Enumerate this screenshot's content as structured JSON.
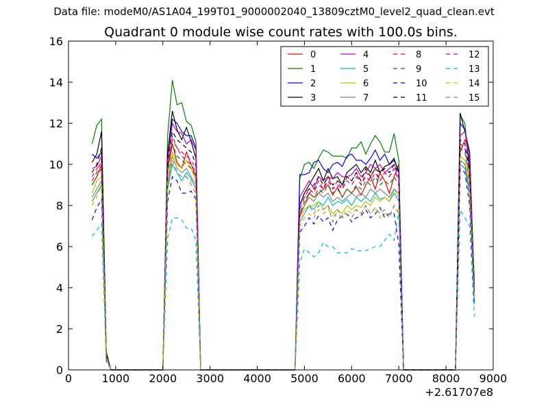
{
  "figure": {
    "suptitle": "Data file: modeM0/AS1A04_199T01_9000002040_13809cztM0_level2_quad_clean.evt",
    "title": "Quadrant 0 module wise count rates with 100.0s bins.",
    "offset_label": "+2.61707e8"
  },
  "chart_data": {
    "type": "line",
    "title": "Quadrant 0 module wise count rates with 100.0s bins.",
    "xlabel": "",
    "ylabel": "",
    "x_offset": "+2.61707e8",
    "xlim": [
      0,
      9000
    ],
    "ylim": [
      0,
      16
    ],
    "xticks": [
      0,
      1000,
      2000,
      3000,
      4000,
      5000,
      6000,
      7000,
      8000,
      9000
    ],
    "yticks": [
      0,
      2,
      4,
      6,
      8,
      10,
      12,
      14,
      16
    ],
    "grid": false,
    "legend_position": "top-right",
    "legend_columns": 4,
    "x": [
      500,
      600,
      700,
      800,
      900,
      1000,
      2000,
      2100,
      2200,
      2300,
      2400,
      2500,
      2600,
      2700,
      2800,
      2900,
      4800,
      4900,
      5000,
      5100,
      5200,
      5300,
      5400,
      5500,
      5600,
      5700,
      5800,
      5900,
      6000,
      6100,
      6200,
      6300,
      6400,
      6500,
      6600,
      6700,
      6800,
      6900,
      7000,
      7100,
      8200,
      8300,
      8400,
      8500,
      8600
    ],
    "series": [
      {
        "name": "0",
        "color": "#ff0000",
        "dash": "solid",
        "values": [
          9.0,
          9.4,
          10.0,
          0.6,
          0.0,
          0.0,
          0.0,
          9.8,
          11.0,
          10.1,
          9.8,
          10.6,
          10.0,
          9.4,
          0.0,
          0.0,
          0.0,
          7.5,
          8.0,
          8.6,
          8.4,
          8.6,
          8.8,
          9.0,
          8.5,
          8.9,
          8.4,
          8.8,
          8.6,
          8.9,
          8.5,
          9.0,
          9.4,
          8.8,
          9.6,
          9.2,
          8.6,
          9.4,
          10.0,
          0.0,
          0.0,
          10.6,
          11.2,
          10.6,
          4.0
        ]
      },
      {
        "name": "1",
        "color": "#008000",
        "dash": "solid",
        "values": [
          11.0,
          11.9,
          12.2,
          0.9,
          0.0,
          0.0,
          0.0,
          11.4,
          14.1,
          12.9,
          13.0,
          12.1,
          11.9,
          11.1,
          0.0,
          0.0,
          0.0,
          9.3,
          10.0,
          10.1,
          9.8,
          10.3,
          10.7,
          10.6,
          10.4,
          10.4,
          10.4,
          10.3,
          10.8,
          10.8,
          11.1,
          10.5,
          11.0,
          11.4,
          11.1,
          10.6,
          10.6,
          11.5,
          10.2,
          0.0,
          0.0,
          12.4,
          12.0,
          9.5,
          4.4
        ]
      },
      {
        "name": "2",
        "color": "#0000ff",
        "dash": "solid",
        "values": [
          10.5,
          10.3,
          10.6,
          0.7,
          0.0,
          0.0,
          0.0,
          10.6,
          12.2,
          12.0,
          11.6,
          11.4,
          11.4,
          10.8,
          0.0,
          0.0,
          0.0,
          9.5,
          9.5,
          9.6,
          10.1,
          10.2,
          9.8,
          9.6,
          10.0,
          10.1,
          9.9,
          10.4,
          10.5,
          10.2,
          10.2,
          10.0,
          10.3,
          10.7,
          10.2,
          10.5,
          10.0,
          10.2,
          9.7,
          0.0,
          0.0,
          12.0,
          11.7,
          9.9,
          4.0
        ]
      },
      {
        "name": "3",
        "color": "#000000",
        "dash": "solid",
        "values": [
          10.1,
          10.5,
          11.6,
          0.8,
          0.0,
          0.0,
          0.0,
          10.5,
          12.6,
          11.7,
          11.2,
          11.8,
          11.1,
          10.3,
          0.0,
          0.0,
          0.0,
          8.0,
          8.6,
          9.0,
          9.4,
          9.8,
          9.2,
          9.8,
          9.3,
          9.4,
          9.0,
          9.6,
          9.8,
          10.0,
          9.6,
          9.9,
          9.6,
          10.2,
          9.6,
          9.9,
          10.0,
          10.3,
          9.6,
          0.0,
          0.0,
          12.5,
          11.6,
          10.6,
          3.8
        ]
      },
      {
        "name": "4",
        "color": "#bf00bf",
        "dash": "solid",
        "values": [
          9.8,
          9.9,
          10.4,
          0.7,
          0.0,
          0.0,
          0.0,
          10.2,
          12.0,
          11.6,
          11.5,
          11.0,
          11.2,
          10.7,
          0.0,
          0.0,
          0.0,
          8.4,
          8.8,
          9.2,
          8.8,
          9.4,
          9.2,
          9.4,
          9.3,
          9.6,
          9.4,
          9.4,
          9.5,
          9.8,
          9.4,
          9.6,
          10.0,
          9.8,
          10.0,
          9.6,
          9.8,
          10.0,
          9.6,
          0.0,
          0.0,
          11.4,
          11.6,
          10.2,
          3.9
        ]
      },
      {
        "name": "5",
        "color": "#00bfbf",
        "dash": "solid",
        "values": [
          8.2,
          8.6,
          9.0,
          0.6,
          0.0,
          0.0,
          0.0,
          8.8,
          10.0,
          9.6,
          9.2,
          9.6,
          9.3,
          8.8,
          0.0,
          0.0,
          0.0,
          7.2,
          7.6,
          8.0,
          7.8,
          8.2,
          8.0,
          8.4,
          8.0,
          8.2,
          8.1,
          8.3,
          8.0,
          8.4,
          8.2,
          8.4,
          8.2,
          8.6,
          8.3,
          8.4,
          8.2,
          8.6,
          8.2,
          0.0,
          0.0,
          10.0,
          9.8,
          8.6,
          3.2
        ]
      },
      {
        "name": "6",
        "color": "#bfbf00",
        "dash": "solid",
        "values": [
          8.6,
          9.2,
          9.4,
          0.6,
          0.0,
          0.0,
          0.0,
          9.4,
          10.6,
          10.0,
          9.8,
          10.2,
          9.8,
          9.2,
          0.0,
          0.0,
          0.0,
          7.4,
          7.8,
          8.0,
          8.0,
          8.2,
          7.8,
          8.0,
          7.6,
          7.8,
          7.6,
          8.0,
          7.8,
          8.0,
          7.9,
          8.2,
          8.0,
          8.4,
          8.2,
          8.4,
          8.2,
          8.8,
          8.4,
          0.0,
          0.0,
          10.4,
          10.2,
          9.0,
          3.6
        ]
      },
      {
        "name": "7",
        "color": "#808080",
        "dash": "solid",
        "values": [
          8.4,
          8.8,
          9.2,
          0.6,
          0.0,
          0.0,
          0.0,
          9.0,
          10.4,
          9.8,
          9.6,
          9.8,
          9.4,
          9.0,
          0.0,
          0.0,
          0.0,
          7.6,
          8.0,
          8.4,
          8.2,
          8.6,
          8.4,
          8.6,
          8.2,
          8.4,
          8.2,
          8.4,
          8.6,
          8.4,
          8.6,
          8.4,
          8.8,
          8.6,
          8.8,
          8.6,
          8.4,
          8.8,
          8.6,
          0.0,
          0.0,
          10.2,
          10.0,
          8.8,
          3.6
        ]
      },
      {
        "name": "8",
        "color": "#ff0000",
        "dash": "dash",
        "values": [
          9.2,
          9.6,
          10.2,
          0.7,
          0.0,
          0.0,
          0.0,
          10.0,
          11.2,
          10.8,
          10.4,
          10.2,
          10.0,
          9.6,
          0.0,
          0.0,
          0.0,
          7.8,
          8.4,
          8.8,
          8.6,
          9.2,
          8.8,
          9.4,
          8.8,
          9.2,
          8.8,
          9.4,
          9.2,
          9.6,
          9.0,
          9.6,
          9.4,
          9.8,
          9.2,
          9.6,
          9.4,
          9.8,
          9.2,
          0.0,
          0.0,
          11.0,
          10.8,
          9.4,
          4.0
        ]
      },
      {
        "name": "9",
        "color": "#008000",
        "dash": "dash",
        "values": [
          9.0,
          9.4,
          9.8,
          0.7,
          0.0,
          0.0,
          0.0,
          9.6,
          11.0,
          10.4,
          10.2,
          10.0,
          9.8,
          9.4,
          0.0,
          0.0,
          0.0,
          7.6,
          8.2,
          8.6,
          8.4,
          8.8,
          8.6,
          9.0,
          8.6,
          8.8,
          8.4,
          8.8,
          8.6,
          9.0,
          8.8,
          9.2,
          9.0,
          9.4,
          9.0,
          9.2,
          9.0,
          9.4,
          9.0,
          0.0,
          0.0,
          10.8,
          10.6,
          9.2,
          3.8
        ]
      },
      {
        "name": "10",
        "color": "#0000ff",
        "dash": "dash",
        "values": [
          7.3,
          7.9,
          8.3,
          0.5,
          0.0,
          0.0,
          0.0,
          8.2,
          9.4,
          9.2,
          8.6,
          8.6,
          8.7,
          8.3,
          0.0,
          0.0,
          0.0,
          6.7,
          7.0,
          7.4,
          7.1,
          7.5,
          7.2,
          7.4,
          6.8,
          7.3,
          7.5,
          7.6,
          7.2,
          7.4,
          7.5,
          7.8,
          7.4,
          7.6,
          7.9,
          7.4,
          7.6,
          7.6,
          6.1,
          0.0,
          0.0,
          9.8,
          9.6,
          8.0,
          3.2
        ]
      },
      {
        "name": "11",
        "color": "#000000",
        "dash": "dash",
        "values": [
          9.6,
          10.0,
          10.8,
          0.7,
          0.0,
          0.0,
          0.0,
          10.2,
          11.6,
          11.2,
          11.0,
          10.8,
          10.6,
          10.0,
          0.0,
          0.0,
          0.0,
          8.0,
          8.6,
          8.8,
          9.0,
          9.4,
          9.0,
          9.4,
          9.0,
          9.2,
          9.0,
          9.4,
          9.2,
          9.6,
          9.2,
          9.8,
          9.4,
          9.8,
          9.6,
          9.8,
          9.6,
          10.0,
          9.4,
          0.0,
          0.0,
          11.2,
          11.0,
          9.8,
          4.0
        ]
      },
      {
        "name": "12",
        "color": "#bf00bf",
        "dash": "dash",
        "values": [
          9.4,
          9.8,
          10.0,
          0.7,
          0.0,
          0.0,
          0.0,
          9.8,
          11.4,
          10.8,
          10.6,
          10.4,
          10.2,
          9.8,
          0.0,
          0.0,
          0.0,
          8.0,
          8.4,
          8.6,
          8.8,
          9.0,
          8.8,
          9.2,
          8.8,
          9.0,
          8.8,
          9.2,
          9.0,
          9.4,
          9.0,
          9.4,
          9.2,
          9.6,
          9.2,
          9.6,
          9.4,
          9.8,
          9.2,
          0.0,
          0.0,
          11.0,
          10.8,
          9.6,
          3.8
        ]
      },
      {
        "name": "13",
        "color": "#00bfbf",
        "dash": "dash",
        "values": [
          6.5,
          6.8,
          7.1,
          0.4,
          0.0,
          0.0,
          0.0,
          6.4,
          7.4,
          7.4,
          7.3,
          6.9,
          6.9,
          6.3,
          0.0,
          0.0,
          0.0,
          5.2,
          5.9,
          5.7,
          5.5,
          5.7,
          6.2,
          6.0,
          6.0,
          5.7,
          5.7,
          5.7,
          5.9,
          5.8,
          5.8,
          5.8,
          5.9,
          6.0,
          6.0,
          6.3,
          6.6,
          6.3,
          7.8,
          0.0,
          0.0,
          7.8,
          7.4,
          7.0,
          2.6
        ]
      },
      {
        "name": "14",
        "color": "#bfbf00",
        "dash": "dash",
        "values": [
          8.0,
          8.4,
          9.0,
          0.6,
          0.0,
          0.0,
          0.0,
          9.2,
          10.4,
          9.8,
          9.6,
          9.4,
          9.2,
          8.8,
          0.0,
          0.0,
          0.0,
          7.0,
          7.4,
          7.6,
          7.4,
          7.8,
          7.6,
          7.8,
          7.5,
          7.6,
          7.4,
          7.8,
          7.6,
          7.8,
          7.6,
          8.0,
          7.6,
          7.9,
          7.4,
          7.6,
          7.5,
          8.0,
          7.8,
          0.0,
          0.0,
          10.4,
          10.2,
          8.8,
          3.6
        ]
      },
      {
        "name": "15",
        "color": "#808080",
        "dash": "dash",
        "values": [
          8.2,
          8.6,
          9.0,
          0.6,
          0.0,
          0.0,
          0.0,
          8.8,
          10.2,
          9.6,
          9.4,
          9.4,
          9.0,
          8.6,
          0.0,
          0.0,
          0.0,
          7.2,
          7.6,
          8.0,
          7.6,
          8.0,
          7.8,
          8.0,
          7.2,
          7.8,
          7.4,
          7.6,
          7.4,
          7.8,
          7.6,
          8.0,
          7.6,
          7.9,
          7.6,
          7.8,
          7.4,
          8.0,
          7.6,
          0.0,
          0.0,
          10.0,
          9.8,
          8.4,
          3.4
        ]
      }
    ]
  }
}
